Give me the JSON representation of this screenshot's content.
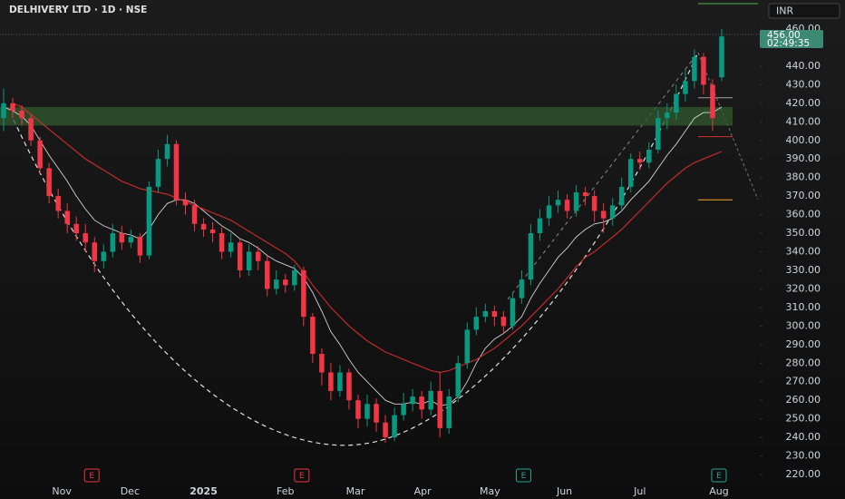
{
  "chart_data": {
    "type": "candlestick",
    "title": "DELHIVERY LTD · 1D · NSE",
    "currency": "INR",
    "price_label": "456.00",
    "countdown": "02:49:35",
    "up_color": "#089981",
    "down_color": "#f23645",
    "open": [
      412,
      420,
      416,
      412,
      400,
      385,
      370,
      362,
      355,
      350,
      345,
      335,
      340,
      350,
      345,
      348,
      338,
      375,
      390,
      398,
      368,
      365,
      355,
      352,
      350,
      340,
      345,
      330,
      340,
      335,
      320,
      325,
      322,
      330,
      305,
      285,
      275,
      265,
      275,
      260,
      250,
      258,
      248,
      240,
      252,
      258,
      262,
      255,
      265,
      245,
      262,
      280,
      298,
      305,
      308,
      305,
      300,
      315,
      325,
      350,
      358,
      365,
      368,
      362,
      372,
      370,
      362,
      358,
      365,
      375,
      390,
      388,
      395,
      412,
      415,
      425,
      432,
      445,
      430,
      434
    ],
    "high": [
      428,
      423,
      419,
      414,
      402,
      388,
      374,
      366,
      359,
      355,
      348,
      344,
      355,
      354,
      352,
      350,
      378,
      395,
      403,
      400,
      372,
      368,
      358,
      356,
      353,
      350,
      347,
      344,
      343,
      338,
      330,
      328,
      333,
      332,
      307,
      288,
      280,
      279,
      277,
      263,
      263,
      261,
      252,
      256,
      264,
      266,
      265,
      270,
      275,
      266,
      284,
      302,
      310,
      312,
      311,
      308,
      318,
      330,
      355,
      363,
      370,
      373,
      371,
      376,
      375,
      373,
      366,
      369,
      380,
      393,
      394,
      399,
      416,
      420,
      430,
      438,
      449,
      447,
      433,
      460
    ],
    "low": [
      405,
      412,
      408,
      397,
      382,
      366,
      358,
      350,
      346,
      340,
      329,
      331,
      337,
      341,
      342,
      334,
      336,
      372,
      386,
      365,
      360,
      351,
      348,
      345,
      336,
      337,
      326,
      327,
      330,
      316,
      317,
      318,
      319,
      300,
      280,
      268,
      260,
      262,
      255,
      245,
      246,
      243,
      237,
      238,
      249,
      254,
      250,
      252,
      240,
      242,
      259,
      277,
      295,
      302,
      300,
      296,
      298,
      312,
      322,
      346,
      354,
      361,
      358,
      359,
      365,
      356,
      350,
      354,
      362,
      372,
      384,
      385,
      393,
      406,
      411,
      421,
      428,
      425,
      405,
      432
    ],
    "close": [
      420,
      416,
      412,
      400,
      385,
      370,
      362,
      355,
      350,
      345,
      335,
      340,
      350,
      345,
      348,
      338,
      375,
      390,
      398,
      368,
      365,
      355,
      352,
      350,
      340,
      345,
      330,
      340,
      335,
      320,
      325,
      322,
      330,
      305,
      285,
      275,
      265,
      275,
      260,
      250,
      258,
      248,
      240,
      252,
      258,
      262,
      255,
      265,
      245,
      262,
      280,
      298,
      305,
      308,
      305,
      300,
      315,
      325,
      350,
      358,
      365,
      368,
      362,
      372,
      370,
      362,
      358,
      365,
      375,
      390,
      388,
      395,
      412,
      415,
      425,
      432,
      445,
      430,
      412,
      456
    ],
    "series": [
      {
        "color": "#e6e6e6",
        "values": [
          418,
          416,
          413,
          408,
          400,
          392,
          385,
          378,
          370,
          363,
          357,
          354,
          352,
          350,
          349,
          347,
          352,
          360,
          366,
          368,
          368,
          366,
          362,
          358,
          354,
          351,
          347,
          345,
          342,
          338,
          335,
          333,
          331,
          326,
          318,
          308,
          297,
          290,
          282,
          275,
          270,
          265,
          260,
          258,
          258,
          259,
          258,
          260,
          257,
          258,
          262,
          270,
          280,
          288,
          293,
          296,
          300,
          305,
          315,
          323,
          330,
          337,
          342,
          348,
          352,
          355,
          356,
          358,
          362,
          368,
          373,
          378,
          385,
          392,
          398,
          405,
          412,
          415,
          415,
          418
        ]
      },
      {
        "color": "#d32f2f",
        "values": [
          null,
          420,
          418,
          414,
          410,
          406,
          402,
          398,
          394,
          390,
          387,
          384,
          381,
          378,
          376,
          374,
          373,
          372,
          371,
          369,
          367,
          365,
          363,
          361,
          359,
          357,
          354,
          351,
          348,
          345,
          342,
          339,
          335,
          329,
          322,
          316,
          310,
          305,
          300,
          296,
          292,
          289,
          286,
          284,
          282,
          280,
          278,
          276,
          275,
          276,
          278,
          280,
          282,
          285,
          288,
          292,
          296,
          300,
          305,
          310,
          315,
          320,
          326,
          332,
          337,
          340,
          344,
          348,
          352,
          357,
          362,
          367,
          372,
          377,
          381,
          385,
          388,
          390,
          392,
          394
        ]
      }
    ],
    "xlim": [
      -0.4,
      79.4
    ],
    "xticks": [
      {
        "value": 6.4,
        "label": "Nov"
      },
      {
        "value": 13.9,
        "label": "Dec"
      },
      {
        "value": 22,
        "label": "2025"
      },
      {
        "value": 31,
        "label": "Feb"
      },
      {
        "value": 38.7,
        "label": "Mar"
      },
      {
        "value": 46.1,
        "label": "Apr"
      },
      {
        "value": 53.5,
        "label": "May"
      },
      {
        "value": 61.7,
        "label": "Jun"
      },
      {
        "value": 70,
        "label": "Jul"
      },
      {
        "value": 78.7,
        "label": "Aug"
      }
    ],
    "ylim": [
      220,
      460
    ],
    "yticks": [
      {
        "value": 220,
        "label": "220.00"
      },
      {
        "value": 230,
        "label": "230.00"
      },
      {
        "value": 240,
        "label": "240.00"
      },
      {
        "value": 250,
        "label": "250.00"
      },
      {
        "value": 260,
        "label": "260.00"
      },
      {
        "value": 270,
        "label": "270.00"
      },
      {
        "value": 280,
        "label": "280.00"
      },
      {
        "value": 290,
        "label": "290.00"
      },
      {
        "value": 300,
        "label": "300.00"
      },
      {
        "value": 310,
        "label": "310.00"
      },
      {
        "value": 320,
        "label": "320.00"
      },
      {
        "value": 330,
        "label": "330.00"
      },
      {
        "value": 340,
        "label": "340.00"
      },
      {
        "value": 350,
        "label": "350.00"
      },
      {
        "value": 360,
        "label": "360.00"
      },
      {
        "value": 370,
        "label": "370.00"
      },
      {
        "value": 380,
        "label": "380.00"
      },
      {
        "value": 390,
        "label": "390.00"
      },
      {
        "value": 400,
        "label": "400.00"
      },
      {
        "value": 410,
        "label": "410.00"
      },
      {
        "value": 420,
        "label": "420.00"
      },
      {
        "value": 430,
        "label": "430.00"
      },
      {
        "value": 440,
        "label": "440.00"
      },
      {
        "value": 460,
        "label": "460.00"
      }
    ],
    "zone": {
      "low": 408,
      "high": 418,
      "color": "#2f5a2f"
    },
    "levels": [
      {
        "value": 423,
        "color": "#9e9e9e"
      },
      {
        "value": 402,
        "color": "#d32f2f"
      },
      {
        "value": 368,
        "color": "#f5a623"
      }
    ],
    "events": [
      {
        "label": "E",
        "x": 9.7,
        "color": "#f23645"
      },
      {
        "label": "E",
        "x": 32.8,
        "color": "#f23645"
      },
      {
        "label": "E",
        "x": 57.2,
        "color": "#26a69a"
      },
      {
        "label": "E",
        "x": 78.7,
        "color": "#26a69a"
      }
    ]
  }
}
